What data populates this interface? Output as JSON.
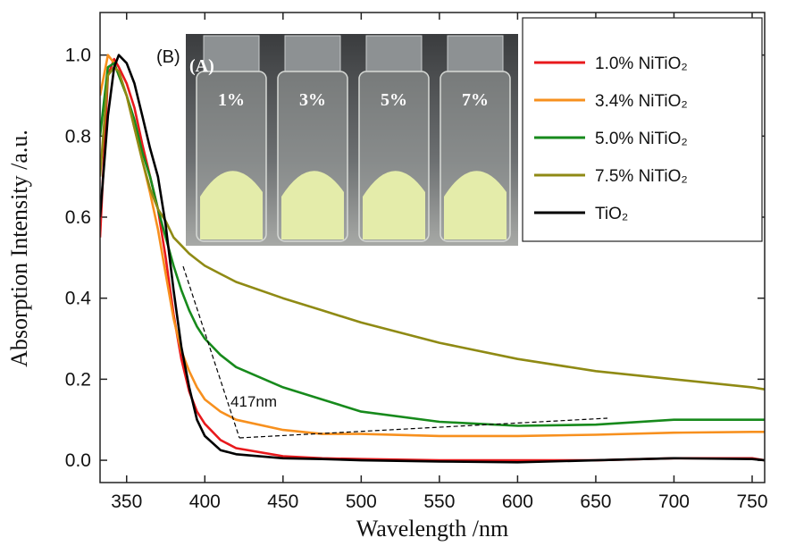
{
  "chart_data": {
    "type": "line",
    "x_label": "Wavelength /nm",
    "y_label": "Absorption Intensity /a.u.",
    "xlim": [
      333,
      758
    ],
    "ylim": [
      -0.055,
      1.105
    ],
    "xticks": [
      350,
      400,
      450,
      500,
      550,
      600,
      650,
      700,
      750
    ],
    "yticks": [
      {
        "value": 0,
        "label": "0.0"
      },
      0.2,
      0.4,
      0.6,
      0.8,
      {
        "value": 1,
        "label": "1.0"
      }
    ],
    "x": [
      333,
      338,
      342,
      345,
      350,
      355,
      360,
      365,
      370,
      375,
      380,
      385,
      390,
      395,
      400,
      410,
      420,
      450,
      475,
      500,
      550,
      600,
      650,
      700,
      750,
      758
    ],
    "series": [
      {
        "name": "1.0% NiTiO₂",
        "color": "#e8191c",
        "values": [
          0.55,
          0.95,
          0.99,
          0.97,
          0.93,
          0.87,
          0.78,
          0.7,
          0.62,
          0.5,
          0.36,
          0.25,
          0.17,
          0.12,
          0.09,
          0.05,
          0.03,
          0.01,
          0.005,
          0.003,
          0,
          0,
          0,
          0.005,
          0.005,
          0
        ]
      },
      {
        "name": "3.4% NiTiO₂",
        "color": "#f7901e",
        "values": [
          0.9,
          1.0,
          0.98,
          0.95,
          0.9,
          0.82,
          0.74,
          0.66,
          0.57,
          0.46,
          0.35,
          0.27,
          0.22,
          0.18,
          0.15,
          0.12,
          0.1,
          0.075,
          0.065,
          0.065,
          0.06,
          0.06,
          0.063,
          0.068,
          0.07,
          0.07
        ]
      },
      {
        "name": "5.0% NiTiO₂",
        "color": "#178a1c",
        "values": [
          0.8,
          0.97,
          0.98,
          0.95,
          0.9,
          0.84,
          0.76,
          0.7,
          0.62,
          0.55,
          0.48,
          0.42,
          0.37,
          0.33,
          0.3,
          0.26,
          0.23,
          0.18,
          0.15,
          0.12,
          0.095,
          0.085,
          0.088,
          0.1,
          0.1,
          0.1
        ]
      },
      {
        "name": "7.5% NiTiO₂",
        "color": "#8f8a14",
        "values": [
          0.7,
          0.95,
          0.97,
          0.96,
          0.9,
          0.82,
          0.74,
          0.67,
          0.62,
          0.59,
          0.55,
          0.53,
          0.51,
          0.495,
          0.48,
          0.46,
          0.44,
          0.4,
          0.37,
          0.34,
          0.29,
          0.25,
          0.22,
          0.2,
          0.18,
          0.175
        ]
      },
      {
        "name": "TiO₂",
        "color": "#000000",
        "values": [
          0.6,
          0.85,
          0.97,
          1.0,
          0.98,
          0.93,
          0.85,
          0.77,
          0.7,
          0.58,
          0.42,
          0.28,
          0.18,
          0.1,
          0.06,
          0.025,
          0.015,
          0.005,
          0.003,
          0,
          -0.003,
          -0.005,
          0,
          0.005,
          0.003,
          0
        ]
      }
    ],
    "annotation": "417nm",
    "panel_label": "(B)",
    "inset": {
      "label": "(A)",
      "vials": [
        "1%",
        "3%",
        "5%",
        "7%"
      ]
    }
  }
}
